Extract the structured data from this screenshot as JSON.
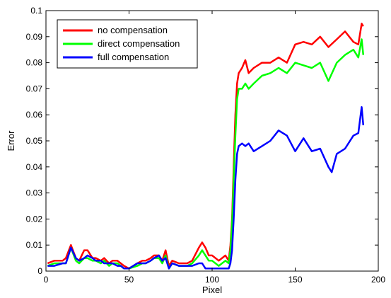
{
  "chart_data": {
    "type": "line",
    "title": "",
    "xlabel": "Pixel",
    "ylabel": "Error",
    "xlim": [
      0,
      200
    ],
    "ylim": [
      0,
      0.1
    ],
    "xticks": [
      0,
      50,
      100,
      150,
      200
    ],
    "xtick_labels": [
      "0",
      "50",
      "100",
      "150",
      "200"
    ],
    "yticks": [
      0,
      0.01,
      0.02,
      0.03,
      0.04,
      0.05,
      0.06,
      0.07,
      0.08,
      0.09,
      0.1
    ],
    "ytick_labels": [
      "0",
      "0.01",
      "0.02",
      "0.03",
      "0.04",
      "0.05",
      "0.06",
      "0.07",
      "0.08",
      "0.09",
      "0.1"
    ],
    "grid": false,
    "legend_position": "top-left",
    "series": [
      {
        "name": "no compensation",
        "color": "#ff0000",
        "x": [
          1,
          5,
          10,
          12,
          15,
          18,
          20,
          23,
          25,
          28,
          30,
          33,
          35,
          38,
          40,
          43,
          45,
          47,
          50,
          55,
          58,
          60,
          63,
          65,
          68,
          70,
          72,
          74,
          76,
          80,
          85,
          88,
          92,
          94,
          96,
          98,
          100,
          104,
          108,
          110,
          111,
          112,
          113,
          114,
          115,
          116,
          118,
          120,
          122,
          125,
          130,
          135,
          140,
          145,
          150,
          155,
          160,
          165,
          170,
          175,
          180,
          185,
          188,
          190,
          191
        ],
        "y": [
          0.003,
          0.004,
          0.004,
          0.005,
          0.01,
          0.005,
          0.004,
          0.008,
          0.008,
          0.005,
          0.005,
          0.004,
          0.005,
          0.003,
          0.004,
          0.004,
          0.003,
          0.002,
          0.001,
          0.003,
          0.004,
          0.004,
          0.005,
          0.006,
          0.006,
          0.004,
          0.008,
          0.002,
          0.004,
          0.003,
          0.003,
          0.004,
          0.009,
          0.011,
          0.009,
          0.006,
          0.006,
          0.004,
          0.006,
          0.004,
          0.01,
          0.02,
          0.04,
          0.06,
          0.072,
          0.076,
          0.078,
          0.081,
          0.076,
          0.078,
          0.08,
          0.08,
          0.082,
          0.08,
          0.087,
          0.088,
          0.087,
          0.09,
          0.086,
          0.089,
          0.092,
          0.088,
          0.087,
          0.095,
          0.094
        ]
      },
      {
        "name": "direct compensation",
        "color": "#00ff00",
        "x": [
          1,
          5,
          10,
          12,
          15,
          18,
          20,
          23,
          25,
          28,
          30,
          33,
          35,
          38,
          40,
          43,
          45,
          47,
          50,
          55,
          58,
          60,
          63,
          65,
          68,
          70,
          72,
          74,
          76,
          80,
          85,
          88,
          92,
          94,
          96,
          98,
          100,
          104,
          108,
          110,
          111,
          112,
          113,
          114,
          115,
          116,
          118,
          120,
          122,
          125,
          130,
          135,
          140,
          145,
          150,
          155,
          160,
          165,
          170,
          175,
          180,
          185,
          188,
          190,
          191
        ],
        "y": [
          0.002,
          0.003,
          0.003,
          0.003,
          0.009,
          0.004,
          0.003,
          0.005,
          0.005,
          0.004,
          0.004,
          0.003,
          0.004,
          0.002,
          0.003,
          0.003,
          0.002,
          0.001,
          0.001,
          0.002,
          0.003,
          0.003,
          0.004,
          0.005,
          0.005,
          0.003,
          0.006,
          0.001,
          0.003,
          0.002,
          0.002,
          0.003,
          0.006,
          0.008,
          0.006,
          0.004,
          0.004,
          0.002,
          0.004,
          0.003,
          0.008,
          0.018,
          0.035,
          0.052,
          0.066,
          0.07,
          0.07,
          0.072,
          0.07,
          0.072,
          0.075,
          0.076,
          0.078,
          0.076,
          0.08,
          0.079,
          0.078,
          0.08,
          0.073,
          0.08,
          0.083,
          0.085,
          0.082,
          0.089,
          0.083
        ]
      },
      {
        "name": "full compensation",
        "color": "#0000ff",
        "x": [
          1,
          5,
          10,
          12,
          15,
          18,
          20,
          23,
          25,
          28,
          30,
          33,
          35,
          38,
          40,
          43,
          45,
          47,
          50,
          55,
          58,
          60,
          63,
          65,
          68,
          70,
          72,
          74,
          76,
          80,
          85,
          88,
          92,
          94,
          96,
          98,
          100,
          104,
          108,
          110,
          111,
          112,
          113,
          114,
          115,
          116,
          118,
          120,
          122,
          125,
          130,
          135,
          140,
          145,
          150,
          155,
          160,
          165,
          170,
          172,
          175,
          180,
          185,
          188,
          190,
          191
        ],
        "y": [
          0.002,
          0.002,
          0.003,
          0.003,
          0.009,
          0.005,
          0.004,
          0.005,
          0.006,
          0.005,
          0.004,
          0.004,
          0.003,
          0.003,
          0.003,
          0.002,
          0.002,
          0.001,
          0.001,
          0.003,
          0.003,
          0.003,
          0.004,
          0.005,
          0.006,
          0.004,
          0.005,
          0.001,
          0.003,
          0.002,
          0.002,
          0.002,
          0.003,
          0.003,
          0.001,
          0.001,
          0.001,
          0.001,
          0.001,
          0.001,
          0.003,
          0.008,
          0.02,
          0.035,
          0.045,
          0.048,
          0.049,
          0.048,
          0.049,
          0.046,
          0.048,
          0.05,
          0.054,
          0.052,
          0.046,
          0.051,
          0.046,
          0.047,
          0.04,
          0.038,
          0.045,
          0.047,
          0.052,
          0.053,
          0.063,
          0.056
        ]
      }
    ]
  }
}
